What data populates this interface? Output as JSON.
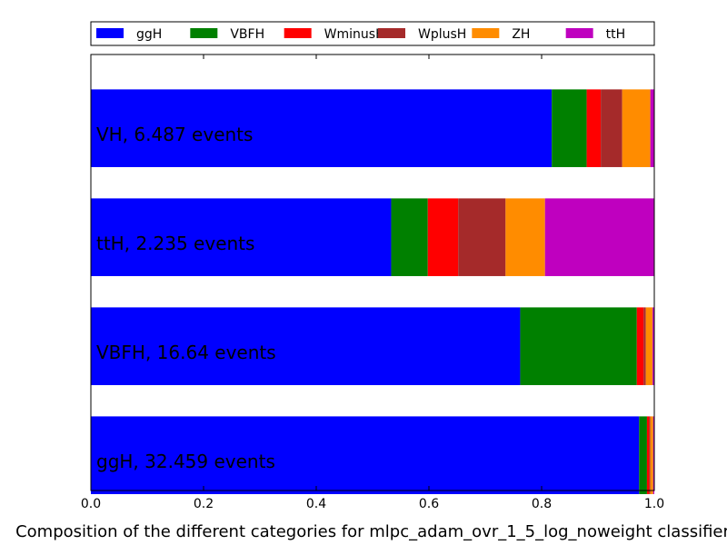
{
  "chart_data": {
    "type": "bar",
    "orientation": "horizontal",
    "stacked": true,
    "xlabel": "Composition of the different categories for mlpc_adam_ovr_1_5_log_noweight classifier",
    "xlim": [
      0,
      1
    ],
    "xticks": [
      "0.0",
      "0.2",
      "0.4",
      "0.6",
      "0.8",
      "1.0"
    ],
    "grid": false,
    "legend_position": "top",
    "series": [
      {
        "name": "ggH",
        "color": "#0000ff"
      },
      {
        "name": "VBFH",
        "color": "#008000"
      },
      {
        "name": "WminusH",
        "color": "#ff0000"
      },
      {
        "name": "WplusH",
        "color": "#a52a2a"
      },
      {
        "name": "ZH",
        "color": "#ff8c00"
      },
      {
        "name": "ttH",
        "color": "#bf00bf"
      }
    ],
    "categories": [
      {
        "label": "VH, 6.487 events",
        "values": [
          0.818,
          0.062,
          0.025,
          0.038,
          0.05,
          0.007
        ]
      },
      {
        "label": "ttH, 2.235 events",
        "values": [
          0.533,
          0.065,
          0.054,
          0.084,
          0.07,
          0.194
        ]
      },
      {
        "label": "VBFH, 16.64 events",
        "values": [
          0.762,
          0.207,
          0.012,
          0.004,
          0.012,
          0.003
        ]
      },
      {
        "label": "ggH, 32.459 events",
        "values": [
          0.973,
          0.014,
          0.004,
          0.002,
          0.005,
          0.002
        ]
      }
    ]
  }
}
